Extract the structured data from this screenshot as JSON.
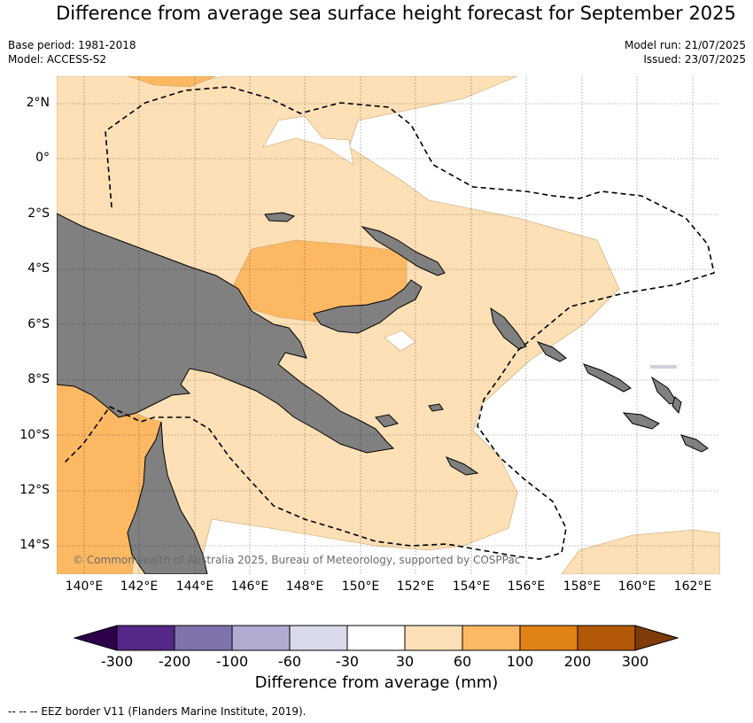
{
  "title": "Difference from average sea surface height forecast for September 2025",
  "header": {
    "base_period": "Base period: 1981-2018",
    "model": "Model: ACCESS-S2",
    "model_run": "Model run: 21/07/2025",
    "issued": "Issued: 23/07/2025"
  },
  "map": {
    "lat_labels": [
      "2°N",
      "0°",
      "2°S",
      "4°S",
      "6°S",
      "8°S",
      "10°S",
      "12°S",
      "14°S"
    ],
    "lon_labels": [
      "140°E",
      "142°E",
      "144°E",
      "146°E",
      "148°E",
      "150°E",
      "152°E",
      "154°E",
      "156°E",
      "158°E",
      "160°E",
      "162°E"
    ],
    "copyright": "© Commonwealth of Australia 2025, Bureau of Meteorology, supported by COSPPac",
    "land_color": "#808080",
    "line_style": "EEZ border dashed"
  },
  "colorbar": {
    "ticks": [
      "-300",
      "-200",
      "-100",
      "-60",
      "-30",
      "30",
      "60",
      "100",
      "200",
      "300"
    ],
    "colors": [
      "#2d004b",
      "#542788",
      "#8073ac",
      "#b2abd2",
      "#d8daeb",
      "#ffffff",
      "#fee0b6",
      "#fdb863",
      "#e08214",
      "#b35806",
      "#7f3b08"
    ],
    "label": "Difference from average (mm)"
  },
  "footnote": "-- -- -- EEZ border V11 (Flanders Marine Institute, 2019)."
}
